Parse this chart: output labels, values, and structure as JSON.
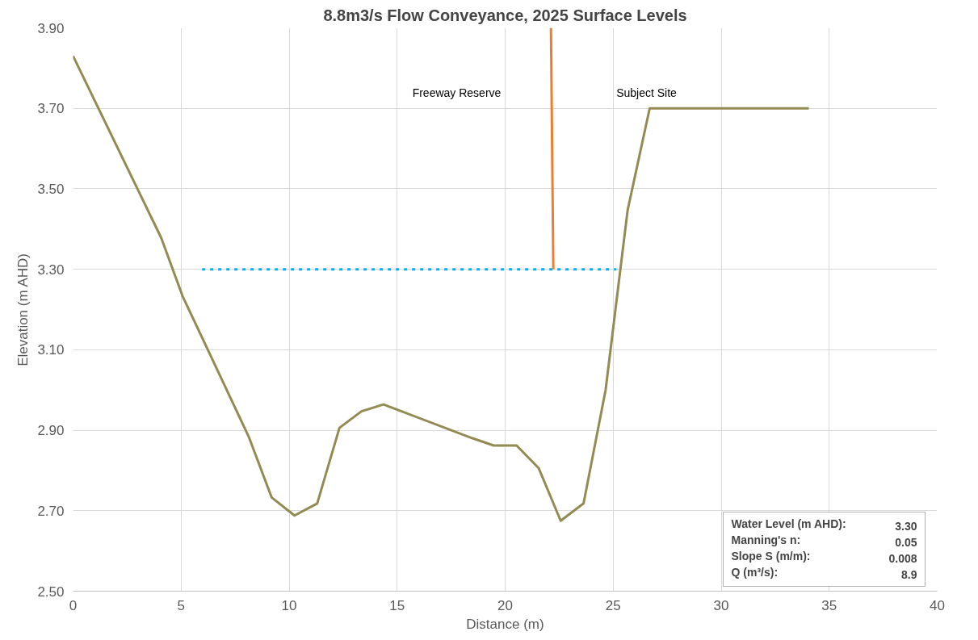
{
  "chart_data": {
    "type": "line",
    "title": "8.8m3/s Flow Conveyance, 2025 Surface Levels",
    "xlabel": "Distance (m)",
    "ylabel": "Elevation (m AHD)",
    "series": [
      {
        "color": "#948a54",
        "x": [
          0,
          4.08,
          5.07,
          8.13,
          9.19,
          10.25,
          11.3,
          12.33,
          13.35,
          14.37,
          18.49,
          19.47,
          20.53,
          21.55,
          22.57,
          23.63,
          24.65,
          25.67,
          26.69,
          34.06
        ],
        "values": [
          3.83,
          3.378,
          3.233,
          2.884,
          2.733,
          2.688,
          2.718,
          2.906,
          2.947,
          2.964,
          2.88,
          2.862,
          2.862,
          2.806,
          2.675,
          2.718,
          3.0,
          3.447,
          3.7,
          3.7
        ]
      },
      {
        "color": "#00b0f0",
        "line_style": "dashed",
        "x": [
          5.97,
          25.14
        ],
        "values": [
          3.3,
          3.3
        ]
      },
      {
        "color": "#ed7d31",
        "x": [
          22.23,
          22.12
        ],
        "values": [
          3.3,
          3.9
        ]
      }
    ],
    "annotations": [
      "Freeway Reserve",
      "Subject Site",
      "Water Level (m AHD): 3.30",
      "Manning's n: 0.05",
      "Slope S (m/m): 0.008",
      "Q (m³/s): 8.9"
    ],
    "xlim": [
      0,
      40
    ],
    "xticks": [
      0,
      5,
      10,
      15,
      20,
      25,
      30,
      35,
      40
    ],
    "ylim": [
      2.5,
      3.9
    ],
    "yticks": [
      {
        "value": 2.5,
        "label": "2.50"
      },
      {
        "value": 2.7,
        "label": "2.70"
      },
      {
        "value": 2.9,
        "label": "2.90"
      },
      {
        "value": 3.1,
        "label": "3.10"
      },
      {
        "value": 3.3,
        "label": "3.30"
      },
      {
        "value": 3.5,
        "label": "3.50"
      },
      {
        "value": 3.7,
        "label": "3.70"
      },
      {
        "value": 3.9,
        "label": "3.90"
      }
    ],
    "grid": true,
    "marker": "none",
    "line_style": "solid"
  }
}
